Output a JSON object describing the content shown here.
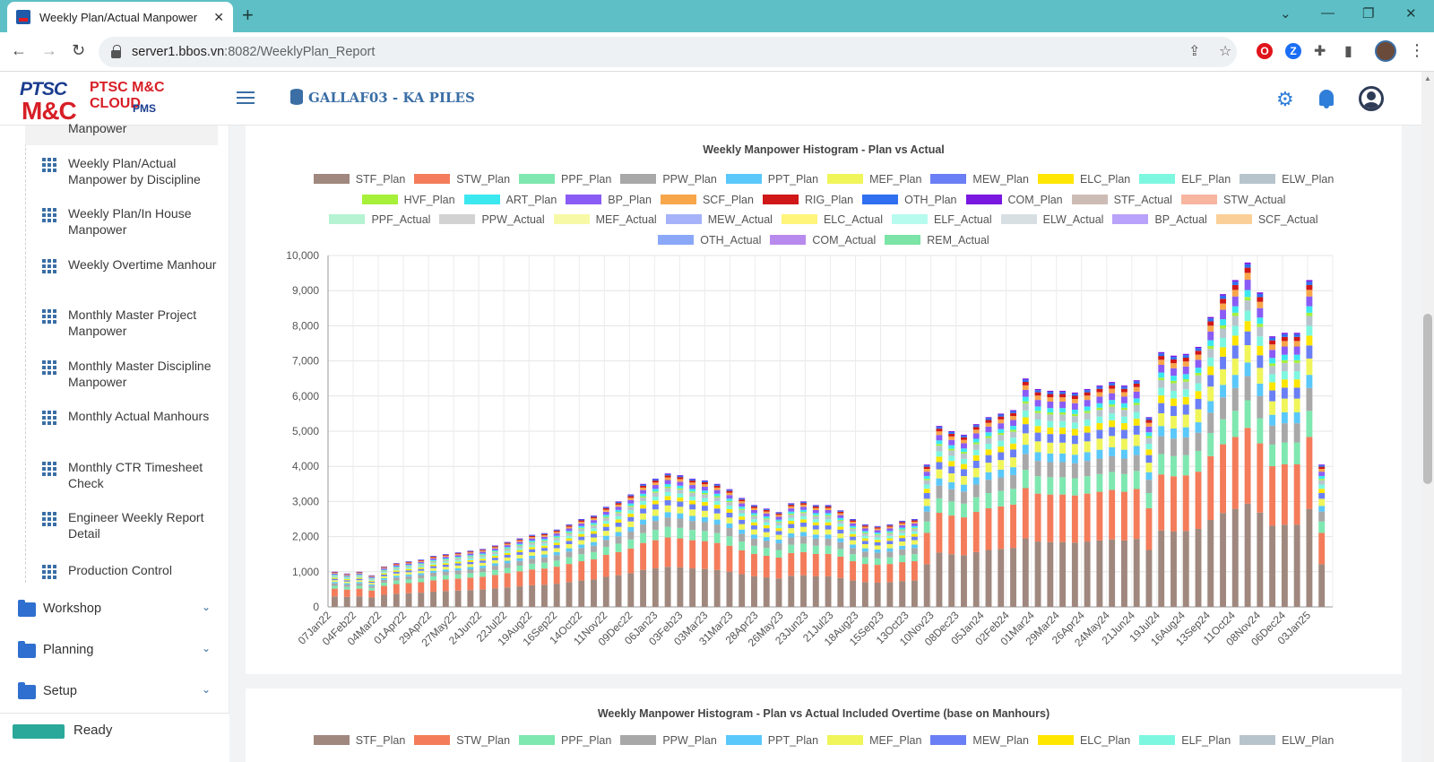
{
  "browser": {
    "tab_title": "Weekly Plan/Actual Manpower",
    "tab_close": "✕",
    "new_tab": "+",
    "url_host": "server1.bbos.vn",
    "url_path": ":8082/WeeklyPlan_Report",
    "win_min": "⌄",
    "win_minimize": "—",
    "win_restore": "❐",
    "win_close": "✕"
  },
  "header": {
    "logo_ptsc": "PTSC",
    "logo_mc": "M&C",
    "logo_cloud": "PTSC M&C CLOUD",
    "logo_pms": "PMS",
    "project_title": "GALLAF03 - KA PILES"
  },
  "sidebar": {
    "partial_item": "Manpower",
    "items": [
      {
        "label": "Weekly Plan/Actual Manpower by Discipline"
      },
      {
        "label": "Weekly Plan/In House Manpower"
      },
      {
        "label": "Weekly Overtime Manhour"
      },
      {
        "label": "Monthly Master Project Manpower"
      },
      {
        "label": "Monthly Master Discipline Manpower"
      },
      {
        "label": "Monthly Actual Manhours"
      },
      {
        "label": "Monthly CTR Timesheet Check"
      },
      {
        "label": "Engineer Weekly Report Detail"
      },
      {
        "label": "Production Control"
      }
    ],
    "groups": [
      {
        "label": "Workshop"
      },
      {
        "label": "Planning"
      },
      {
        "label": "Setup"
      }
    ],
    "status": "Ready"
  },
  "chart_data": {
    "type": "bar",
    "stacked": true,
    "title": "Weekly Manpower Histogram - Plan vs Actual",
    "ylim": [
      0,
      10000
    ],
    "yticks": [
      "0",
      "1,000",
      "2,000",
      "3,000",
      "4,000",
      "5,000",
      "6,000",
      "7,000",
      "8,000",
      "9,000",
      "10,000"
    ],
    "x_tick_labels": [
      "07Jan22",
      "04Feb22",
      "04Mar22",
      "01Apr22",
      "29Apr22",
      "27May22",
      "24Jun22",
      "22Jul22",
      "19Aug22",
      "16Sep22",
      "14Oct22",
      "11Nov22",
      "09Dec22",
      "06Jan23",
      "03Feb23",
      "03Mar23",
      "31Mar23",
      "28Apr23",
      "26May23",
      "23Jun23",
      "21Jul23",
      "18Aug23",
      "15Sep23",
      "13Oct23",
      "10Nov23",
      "08Dec23",
      "05Jan24",
      "02Feb24",
      "01Mar24",
      "29Mar24",
      "26Apr24",
      "24May24",
      "21Jun24",
      "19Jul24",
      "16Aug24",
      "13Sep24",
      "11Oct24",
      "08Nov24",
      "06Dec24",
      "03Jan25"
    ],
    "series_colors": [
      "#a0887e",
      "#f47c5a",
      "#7ee8b0",
      "#a8a8a8",
      "#5ac8fa",
      "#f0f55a",
      "#6a7ff5",
      "#ffe600",
      "#7ef7e0",
      "#b8c4cc",
      "#a6f03a",
      "#3ce8f0",
      "#8a5cf5",
      "#f7a64a",
      "#d01818",
      "#2f6ff0",
      "#7a18e0"
    ],
    "plan_totals": [
      1000,
      950,
      1000,
      900,
      1150,
      1250,
      1300,
      1350,
      1450,
      1500,
      1550,
      1600,
      1650,
      1750,
      1850,
      1950,
      2050,
      2100,
      2200,
      2350,
      2500,
      2600,
      2850,
      3000,
      3200,
      3500,
      3650,
      3800,
      3750,
      3650,
      3600,
      3500,
      3350,
      3100,
      2900,
      2800,
      2700,
      2950,
      3000,
      2900,
      2900,
      2750,
      2500,
      2350,
      2300,
      2350,
      2450,
      2500,
      4050,
      5150,
      5000,
      4900,
      5200,
      5400,
      5500,
      5600,
      6500,
      6200,
      6150,
      6150,
      6100,
      6200,
      6300,
      6400,
      6300,
      6450,
      5400,
      7250,
      7150,
      7200,
      7400,
      8250,
      8900,
      9300,
      9800,
      8950,
      7700,
      7800,
      7800,
      9300,
      4050
    ],
    "legend": [
      {
        "name": "STF_Plan",
        "color": "#a0887e"
      },
      {
        "name": "STW_Plan",
        "color": "#f47c5a"
      },
      {
        "name": "PPF_Plan",
        "color": "#7ee8b0"
      },
      {
        "name": "PPW_Plan",
        "color": "#a8a8a8"
      },
      {
        "name": "PPT_Plan",
        "color": "#5ac8fa"
      },
      {
        "name": "MEF_Plan",
        "color": "#f0f55a"
      },
      {
        "name": "MEW_Plan",
        "color": "#6a7ff5"
      },
      {
        "name": "ELC_Plan",
        "color": "#ffe600"
      },
      {
        "name": "ELF_Plan",
        "color": "#7ef7e0"
      },
      {
        "name": "ELW_Plan",
        "color": "#b8c4cc"
      },
      {
        "name": "HVF_Plan",
        "color": "#a6f03a"
      },
      {
        "name": "ART_Plan",
        "color": "#3ce8f0"
      },
      {
        "name": "BP_Plan",
        "color": "#8a5cf5"
      },
      {
        "name": "SCF_Plan",
        "color": "#f7a64a"
      },
      {
        "name": "RIG_Plan",
        "color": "#d01818"
      },
      {
        "name": "OTH_Plan",
        "color": "#2f6ff0"
      },
      {
        "name": "COM_Plan",
        "color": "#7a18e0"
      },
      {
        "name": "STF_Actual",
        "color": "#cdbcb6"
      },
      {
        "name": "STW_Actual",
        "color": "#f8b5a0"
      },
      {
        "name": "PPF_Actual",
        "color": "#b6f3d2"
      },
      {
        "name": "PPW_Actual",
        "color": "#d2d2d2"
      },
      {
        "name": "MEF_Actual",
        "color": "#f7f9a6"
      },
      {
        "name": "MEW_Actual",
        "color": "#a6b3f9"
      },
      {
        "name": "ELC_Actual",
        "color": "#fff57a"
      },
      {
        "name": "ELF_Actual",
        "color": "#b6fbee"
      },
      {
        "name": "ELW_Actual",
        "color": "#d8dfe3"
      },
      {
        "name": "BP_Actual",
        "color": "#b9a2f9"
      },
      {
        "name": "SCF_Actual",
        "color": "#fbcf98"
      },
      {
        "name": "OTH_Actual",
        "color": "#8aa8f7"
      },
      {
        "name": "COM_Actual",
        "color": "#b98aee"
      },
      {
        "name": "REM_Actual",
        "color": "#7be4a6"
      }
    ]
  },
  "chart2": {
    "title": "Weekly Manpower Histogram - Plan vs Actual Included Overtime (base on Manhours)",
    "legend": [
      {
        "name": "STF_Plan",
        "color": "#a0887e"
      },
      {
        "name": "STW_Plan",
        "color": "#f47c5a"
      },
      {
        "name": "PPF_Plan",
        "color": "#7ee8b0"
      },
      {
        "name": "PPW_Plan",
        "color": "#a8a8a8"
      },
      {
        "name": "PPT_Plan",
        "color": "#5ac8fa"
      },
      {
        "name": "MEF_Plan",
        "color": "#f0f55a"
      },
      {
        "name": "MEW_Plan",
        "color": "#6a7ff5"
      },
      {
        "name": "ELC_Plan",
        "color": "#ffe600"
      },
      {
        "name": "ELF_Plan",
        "color": "#7ef7e0"
      },
      {
        "name": "ELW_Plan",
        "color": "#b8c4cc"
      }
    ]
  }
}
